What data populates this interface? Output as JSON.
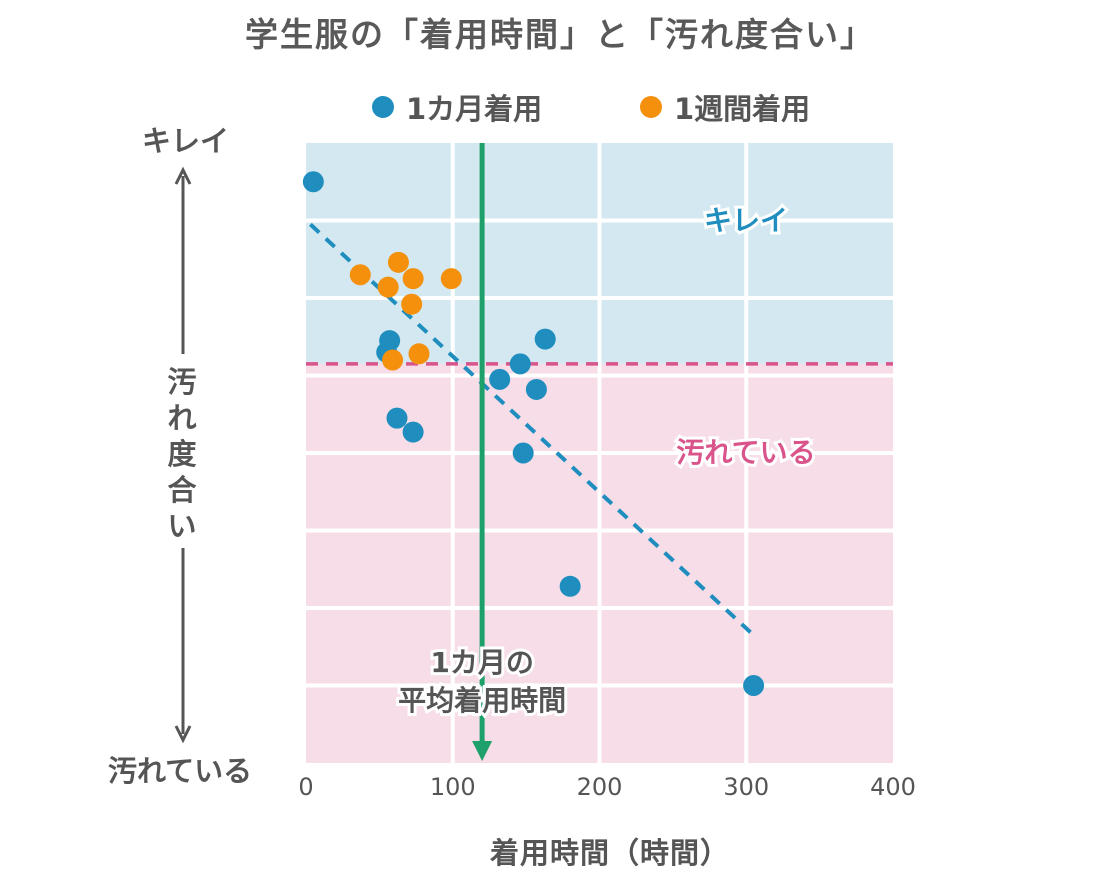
{
  "chart_data": {
    "type": "scatter",
    "title": "学生服の「着用時間」と「汚れ度合い」",
    "xlabel": "着用時間（時間）",
    "ylabel": "汚れ度合い",
    "y_top_label": "キレイ",
    "y_bottom_label": "汚れている",
    "xlim": [
      0,
      400
    ],
    "x_ticks": [
      0,
      100,
      200,
      300,
      400
    ],
    "ylim": [
      0,
      8
    ],
    "y_direction": "top = キレイ, bottom = 汚れている",
    "grid": true,
    "legend_position": "top",
    "series": [
      {
        "name": "1カ月着用",
        "color": "#1f8ebf",
        "points": [
          {
            "x": 5,
            "y": 7.5
          },
          {
            "x": 55,
            "y": 5.3
          },
          {
            "x": 57,
            "y": 5.45
          },
          {
            "x": 62,
            "y": 4.45
          },
          {
            "x": 73,
            "y": 4.27
          },
          {
            "x": 132,
            "y": 4.95
          },
          {
            "x": 146,
            "y": 5.15
          },
          {
            "x": 148,
            "y": 4.0
          },
          {
            "x": 157,
            "y": 4.82
          },
          {
            "x": 163,
            "y": 5.47
          },
          {
            "x": 180,
            "y": 2.28
          },
          {
            "x": 305,
            "y": 1.0
          }
        ]
      },
      {
        "name": "1週間着用",
        "color": "#f4900c",
        "points": [
          {
            "x": 37,
            "y": 6.3
          },
          {
            "x": 56,
            "y": 6.14
          },
          {
            "x": 63,
            "y": 6.46
          },
          {
            "x": 73,
            "y": 6.25
          },
          {
            "x": 72,
            "y": 5.92
          },
          {
            "x": 99,
            "y": 6.25
          },
          {
            "x": 59,
            "y": 5.2
          },
          {
            "x": 77,
            "y": 5.28
          }
        ]
      }
    ],
    "trend_line": {
      "color": "#1f8ebf",
      "from": {
        "x": 3,
        "y": 6.95
      },
      "to": {
        "x": 305,
        "y": 1.65
      }
    },
    "threshold_y": 5.15,
    "threshold_color": "#d9548a",
    "regions": [
      {
        "label": "キレイ",
        "color": "#d3e8f0",
        "text_color": "#1f8ebf"
      },
      {
        "label": "汚れている",
        "color": "#f6dde7",
        "text_color": "#d9548a"
      }
    ],
    "average_line": {
      "x": 120,
      "color": "#1ea06b",
      "label": "1カ月の\n平均着用時間"
    }
  }
}
